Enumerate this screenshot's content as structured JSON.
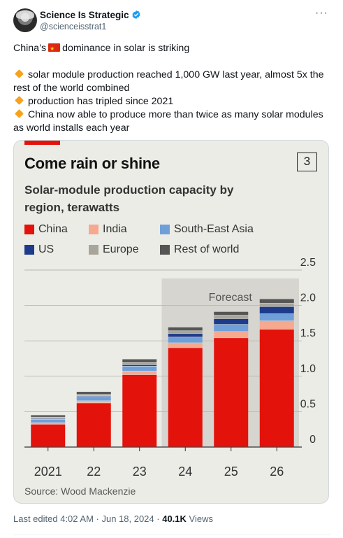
{
  "author": {
    "name": "Science Is Strategic",
    "handle": "@scienceisstrat1",
    "verified_icon": "verified-badge-icon",
    "more_icon": "more-options-icon"
  },
  "tweet": {
    "line1_before": "China’s",
    "line1_after": "dominance in solar is striking",
    "bullets": [
      "solar module production reached 1,000 GW last year, almost 5x the rest of the world combined",
      "production has tripled since 2021",
      "China now able to produce more than twice as many solar modules as world installs each year"
    ]
  },
  "card": {
    "title": "Come rain or shine",
    "number": "3",
    "subtitle": "Solar-module production capacity by region, terawatts",
    "source": "Source: Wood Mackenzie"
  },
  "chart_data": {
    "type": "bar",
    "stacked": true,
    "categories": [
      "2021",
      "22",
      "23",
      "24",
      "25",
      "26"
    ],
    "forecast_label": "Forecast",
    "forecast_categories": [
      "24",
      "25",
      "26"
    ],
    "ylim": [
      0,
      2.5
    ],
    "yticks": [
      "0",
      "0.5",
      "1.0",
      "1.5",
      "2.0",
      "2.5"
    ],
    "ytick_values": [
      0,
      0.5,
      1.0,
      1.5,
      2.0,
      2.5
    ],
    "grid": true,
    "legend_position": "top",
    "series": [
      {
        "name": "China",
        "color": "#e3120b",
        "values": [
          0.32,
          0.62,
          1.02,
          1.4,
          1.54,
          1.66
        ]
      },
      {
        "name": "India",
        "color": "#f6a98e",
        "values": [
          0.02,
          0.03,
          0.05,
          0.07,
          0.09,
          0.12
        ]
      },
      {
        "name": "South-East Asia",
        "color": "#6f9fd8",
        "values": [
          0.05,
          0.06,
          0.07,
          0.08,
          0.1,
          0.1
        ]
      },
      {
        "name": "US",
        "color": "#1e3a8a",
        "values": [
          0.01,
          0.01,
          0.02,
          0.05,
          0.08,
          0.1
        ]
      },
      {
        "name": "Europe",
        "color": "#a8a69c",
        "values": [
          0.02,
          0.02,
          0.03,
          0.04,
          0.05,
          0.05
        ]
      },
      {
        "name": "Rest of world",
        "color": "#555555",
        "values": [
          0.03,
          0.04,
          0.05,
          0.05,
          0.05,
          0.06
        ]
      }
    ]
  },
  "footer": {
    "edited": "Last edited 4:02 AM · Jun 18, 2024 ·",
    "views_count": "40.1K",
    "views_label": "Views"
  }
}
